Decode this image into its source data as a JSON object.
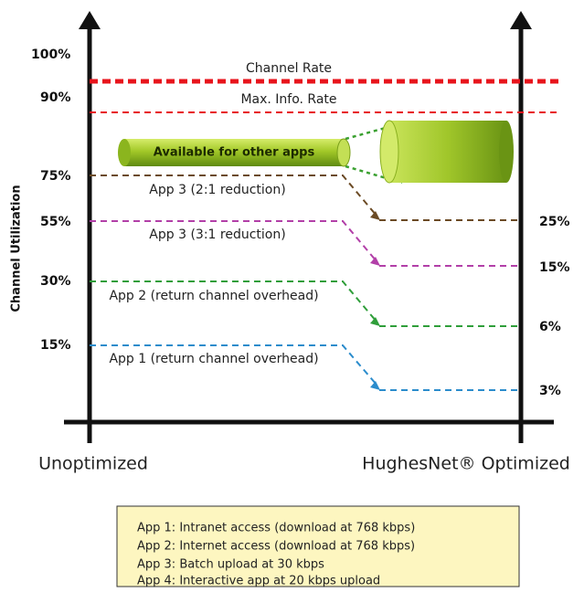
{
  "diagram": {
    "y_axis_label": "Channel Utilization",
    "left_levels": [
      "100%",
      "90%",
      "75%",
      "55%",
      "30%",
      "15%"
    ],
    "right_levels": [
      "25%",
      "15%",
      "6%",
      "3%"
    ],
    "reference_lines": [
      "Channel Rate",
      "Max. Info. Rate"
    ],
    "flows": [
      "App 3 (2:1 reduction)",
      "App 3 (3:1 reduction)",
      "App 2 (return channel overhead)",
      "App 1 (return channel overhead)"
    ],
    "cylinder_label": "Available for other apps",
    "x_labels": [
      "Unoptimized",
      "HughesNet® Optimized"
    ],
    "legend": [
      "App 1: Intranet access (download at 768 kbps)",
      "App 2: Internet access (download at 768 kbps)",
      "App 3: Batch upload at 30 kbps",
      "App 4: Interactive app at 20 kbps upload"
    ]
  }
}
